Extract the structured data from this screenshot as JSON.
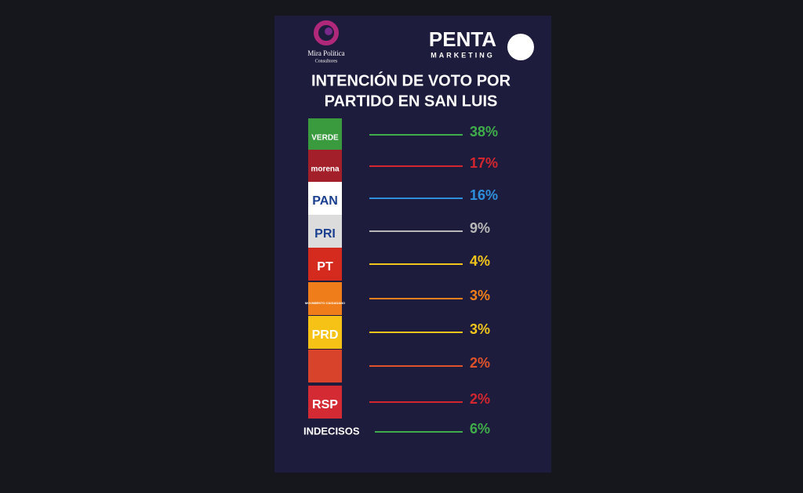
{
  "header": {
    "brand_left": "Mira Política",
    "brand_left_sub": "Consultores",
    "brand_right": "PENTA",
    "brand_right_sub": "MARKETING"
  },
  "title_lines": [
    "INTENCIÓN DE VOTO POR",
    "PARTIDO EN SAN LUIS"
  ],
  "rows": [
    {
      "logo_text": "VERDE",
      "logo_bg": "#3a9a3e",
      "value": "38%",
      "color": "#3fae4a"
    },
    {
      "logo_text": "morena",
      "logo_bg": "#a3202b",
      "value": "17%",
      "color": "#d3262f"
    },
    {
      "logo_text": "PAN",
      "logo_bg": "#ffffff",
      "value": "16%",
      "color": "#2e8fdb"
    },
    {
      "logo_text": "PRI",
      "logo_bg": "#dcdcdc",
      "value": "9%",
      "color": "#b8b8b8"
    },
    {
      "logo_text": "PT",
      "logo_bg": "#d52b1e",
      "value": "4%",
      "color": "#f2c51c"
    },
    {
      "logo_text": "MOVIMIENTO CIUDADANO",
      "logo_bg": "#ef7d1a",
      "value": "3%",
      "color": "#ef7f1a"
    },
    {
      "logo_text": "PRD",
      "logo_bg": "#f6c215",
      "value": "3%",
      "color": "#f2c51c"
    },
    {
      "logo_bg": "#d8442b",
      "value": "2%",
      "color": "#e0522a"
    },
    {
      "logo_text": "RSP",
      "logo_bg": "#d42a33",
      "value": "2%",
      "color": "#d3262f"
    },
    {
      "label": "INDECISOS",
      "value": "6%",
      "color": "#3fae4a"
    }
  ]
}
